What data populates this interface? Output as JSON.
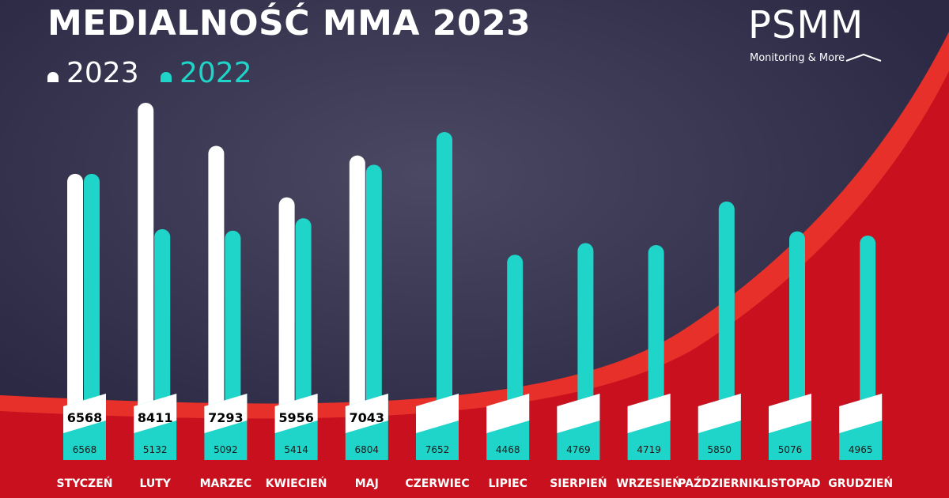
{
  "title": "MEDIALNOŚĆ MMA 2023",
  "brand": {
    "name": "PSMM",
    "tagline": "Monitoring & More"
  },
  "colors": {
    "bg": "#2d2b47",
    "red": "#c8101e",
    "red_light": "#e8302a",
    "bar_2023": "#ffffff",
    "bar_2022": "#1fd4c8",
    "text": "#ffffff",
    "label_dark": "#000000"
  },
  "chart_data": {
    "type": "bar",
    "categories": [
      "STYCZEŃ",
      "LUTY",
      "MARZEC",
      "KWIECIEŃ",
      "MAJ",
      "CZERWIEC",
      "LIPIEC",
      "SIERPIEŃ",
      "WRZESIEŃ",
      "PAŹDZIERNIK",
      "LISTOPAD",
      "GRUDZIEŃ"
    ],
    "series": [
      {
        "name": "2023",
        "values": [
          6568,
          8411,
          7293,
          5956,
          7043,
          null,
          null,
          null,
          null,
          null,
          null,
          null
        ]
      },
      {
        "name": "2022",
        "values": [
          6568,
          5132,
          5092,
          5414,
          6804,
          7652,
          4468,
          4769,
          4719,
          5850,
          5076,
          4965
        ]
      }
    ],
    "title": "MEDIALNOŚĆ MMA 2023",
    "ylim": [
      0,
      8411
    ],
    "legend": "top-left",
    "grid": false
  }
}
